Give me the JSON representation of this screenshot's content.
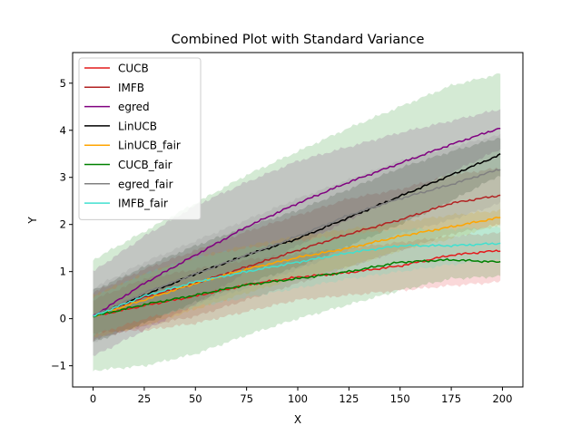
{
  "chart_data": {
    "type": "line",
    "title": "Combined Plot with Standard Variance",
    "xlabel": "X",
    "ylabel": "Y",
    "xlim": [
      -10,
      210
    ],
    "ylim": [
      -1.45,
      5.65
    ],
    "xticks": [
      0,
      25,
      50,
      75,
      100,
      125,
      150,
      175,
      200
    ],
    "yticks": [
      -1,
      0,
      1,
      2,
      3,
      4,
      5
    ],
    "legend_position": "upper-left",
    "grid": false,
    "shaded_band": "mean ± standard deviation",
    "series": [
      {
        "name": "CUCB",
        "color": "#e41a1c",
        "x": [
          0,
          25,
          50,
          75,
          100,
          125,
          150,
          175,
          199
        ],
        "values": [
          0.05,
          0.28,
          0.48,
          0.72,
          0.88,
          0.98,
          1.12,
          1.35,
          1.45
        ],
        "upper": [
          0.4,
          0.85,
          1.05,
          1.25,
          1.38,
          1.5,
          1.62,
          1.75,
          1.82
        ],
        "lower": [
          -0.3,
          -0.25,
          -0.1,
          0.15,
          0.4,
          0.5,
          0.6,
          0.7,
          0.78
        ]
      },
      {
        "name": "IMFB",
        "color": "#b22222",
        "x": [
          0,
          25,
          50,
          75,
          100,
          125,
          150,
          175,
          199
        ],
        "values": [
          0.05,
          0.45,
          0.75,
          1.1,
          1.45,
          1.8,
          2.1,
          2.45,
          2.62
        ],
        "upper": [
          0.55,
          1.05,
          1.45,
          1.85,
          2.2,
          2.55,
          2.75,
          3.05,
          3.2
        ],
        "lower": [
          -0.45,
          -0.15,
          0.05,
          0.4,
          0.75,
          1.1,
          1.45,
          1.8,
          2.0
        ]
      },
      {
        "name": "egred",
        "color": "#800080",
        "x": [
          0,
          25,
          50,
          75,
          100,
          125,
          150,
          175,
          199
        ],
        "values": [
          0.05,
          0.75,
          1.35,
          1.95,
          2.45,
          2.9,
          3.3,
          3.7,
          4.05
        ],
        "upper": [
          1.0,
          1.75,
          2.4,
          2.9,
          3.35,
          3.65,
          3.95,
          4.2,
          4.45
        ],
        "lower": [
          -0.8,
          -0.25,
          0.3,
          1.0,
          1.55,
          2.1,
          2.6,
          3.1,
          3.6
        ]
      },
      {
        "name": "LinUCB",
        "color": "#000000",
        "x": [
          0,
          25,
          50,
          75,
          100,
          125,
          150,
          175,
          199
        ],
        "values": [
          0.05,
          0.5,
          0.95,
          1.35,
          1.7,
          2.15,
          2.6,
          3.05,
          3.48
        ],
        "upper": [
          0.6,
          1.1,
          1.55,
          1.95,
          2.3,
          2.75,
          3.2,
          3.55,
          3.85
        ],
        "lower": [
          -0.5,
          -0.1,
          0.35,
          0.75,
          1.1,
          1.55,
          2.0,
          2.5,
          3.05
        ]
      },
      {
        "name": "LinUCB_fair",
        "color": "#ffa500",
        "x": [
          0,
          25,
          50,
          75,
          100,
          125,
          150,
          175,
          199
        ],
        "values": [
          0.05,
          0.4,
          0.75,
          1.05,
          1.3,
          1.5,
          1.75,
          1.95,
          2.15
        ],
        "upper": [
          0.5,
          0.95,
          1.3,
          1.55,
          1.75,
          1.9,
          2.05,
          2.2,
          2.3
        ],
        "lower": [
          -0.4,
          -0.15,
          0.2,
          0.55,
          0.85,
          1.1,
          1.45,
          1.7,
          2.0
        ]
      },
      {
        "name": "CUCB_fair",
        "color": "#008000",
        "x": [
          0,
          25,
          50,
          75,
          100,
          125,
          150,
          175,
          199
        ],
        "values": [
          0.05,
          0.3,
          0.5,
          0.72,
          0.85,
          1.0,
          1.2,
          1.25,
          1.2
        ],
        "upper": [
          1.25,
          1.85,
          2.45,
          3.05,
          3.55,
          4.05,
          4.5,
          4.95,
          5.2
        ],
        "lower": [
          -1.1,
          -1.0,
          -0.75,
          -0.35,
          0.0,
          0.3,
          0.6,
          0.85,
          0.9
        ]
      },
      {
        "name": "egred_fair",
        "color": "#808080",
        "x": [
          0,
          25,
          50,
          75,
          100,
          125,
          150,
          175,
          199
        ],
        "values": [
          0.05,
          0.55,
          0.95,
          1.35,
          1.75,
          2.2,
          2.55,
          2.85,
          3.18
        ],
        "upper": [
          0.65,
          1.2,
          1.65,
          2.1,
          2.55,
          2.95,
          3.35,
          3.65,
          3.9
        ],
        "lower": [
          -0.5,
          -0.05,
          0.3,
          0.65,
          1.05,
          1.45,
          1.8,
          2.1,
          2.45
        ]
      },
      {
        "name": "IMFB_fair",
        "color": "#40e0d0",
        "x": [
          0,
          25,
          50,
          75,
          100,
          125,
          150,
          175,
          199
        ],
        "values": [
          0.05,
          0.48,
          0.78,
          1.0,
          1.2,
          1.4,
          1.55,
          1.55,
          1.6
        ],
        "upper": [
          0.45,
          0.95,
          1.3,
          1.5,
          1.65,
          1.8,
          1.9,
          1.9,
          1.95
        ],
        "lower": [
          -0.35,
          0.0,
          0.25,
          0.45,
          0.65,
          0.85,
          1.0,
          1.15,
          1.25
        ]
      }
    ]
  }
}
